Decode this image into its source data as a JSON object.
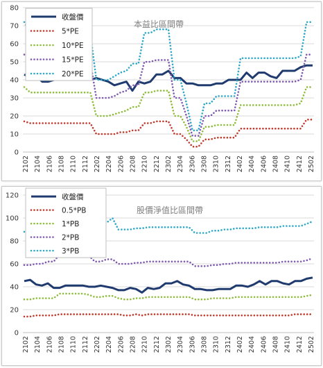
{
  "chart_data": [
    {
      "type": "line",
      "title": "本益比區間帶",
      "xlabel": "",
      "ylabel": "",
      "ylim": [
        0,
        80
      ],
      "yticks": [
        0,
        10,
        20,
        30,
        40,
        50,
        60,
        70,
        80
      ],
      "grid": true,
      "legend_position": "top-left",
      "x_tick_labels": [
        "2102",
        "2104",
        "2106",
        "2108",
        "2110",
        "2112",
        "2202",
        "2204",
        "2206",
        "2208",
        "2210",
        "2212",
        "2302",
        "2304",
        "2306",
        "2308",
        "2310",
        "2312",
        "2402",
        "2404",
        "2406",
        "2408",
        "2410",
        "2412",
        "2502"
      ],
      "series": [
        {
          "name": "收盤價",
          "color": "#1f3a6e",
          "style": "solid",
          "values": [
            43,
            41,
            42,
            39,
            39,
            40,
            41,
            40,
            40,
            41,
            41,
            40,
            41,
            40,
            39,
            37,
            38,
            39,
            34,
            39,
            38,
            39,
            43,
            43,
            45,
            41,
            41,
            38,
            38,
            37,
            37,
            37,
            38,
            38,
            40,
            40,
            40,
            44,
            41,
            44,
            44,
            42,
            41,
            45,
            45,
            45,
            47,
            48,
            48
          ]
        },
        {
          "name": "5*PE",
          "color": "#c0392b",
          "style": "dotted",
          "values": [
            17,
            16,
            16,
            16,
            16,
            16,
            16,
            16,
            16,
            16,
            16,
            16,
            10,
            10,
            10,
            10,
            11,
            11,
            12,
            12,
            16,
            16,
            17,
            17,
            17,
            10,
            10,
            7,
            3,
            3,
            7,
            7,
            8,
            8,
            8,
            8,
            13,
            13,
            13,
            13,
            13,
            13,
            13,
            13,
            13,
            13,
            13,
            18,
            18
          ]
        },
        {
          "name": "10*PE",
          "color": "#8fbc3c",
          "style": "dotted",
          "values": [
            36,
            33,
            33,
            33,
            33,
            33,
            33,
            33,
            33,
            33,
            33,
            33,
            20,
            20,
            20,
            21,
            22,
            23,
            25,
            25,
            33,
            33,
            34,
            34,
            34,
            20,
            20,
            14,
            6,
            6,
            14,
            14,
            15,
            15,
            15,
            15,
            26,
            26,
            26,
            26,
            26,
            26,
            26,
            26,
            26,
            26,
            27,
            36,
            36
          ]
        },
        {
          "name": "15*PE",
          "color": "#7e5ab0",
          "style": "dotted",
          "values": [
            54,
            50,
            50,
            50,
            50,
            50,
            50,
            50,
            50,
            50,
            50,
            50,
            30,
            30,
            30,
            31,
            33,
            34,
            37,
            37,
            50,
            50,
            51,
            51,
            51,
            30,
            30,
            20,
            9,
            9,
            20,
            20,
            23,
            23,
            23,
            23,
            39,
            39,
            39,
            39,
            39,
            39,
            39,
            39,
            39,
            39,
            40,
            54,
            54
          ]
        },
        {
          "name": "20*PE",
          "color": "#2ea8c8",
          "style": "dotted",
          "values": [
            72,
            66,
            66,
            66,
            66,
            66,
            66,
            66,
            66,
            66,
            66,
            66,
            40,
            40,
            40,
            42,
            44,
            45,
            49,
            49,
            66,
            66,
            68,
            68,
            68,
            40,
            40,
            27,
            12,
            12,
            27,
            27,
            31,
            31,
            31,
            31,
            52,
            52,
            52,
            52,
            52,
            52,
            52,
            52,
            52,
            52,
            53,
            72,
            72
          ]
        }
      ]
    },
    {
      "type": "line",
      "title": "股價淨值比區間帶",
      "xlabel": "",
      "ylabel": "",
      "ylim": [
        0,
        120
      ],
      "yticks": [
        0,
        20,
        40,
        60,
        80,
        100,
        120
      ],
      "grid": true,
      "legend_position": "top-left",
      "x_tick_labels": [
        "2102",
        "2104",
        "2106",
        "2108",
        "2110",
        "2112",
        "2202",
        "2204",
        "2206",
        "2208",
        "2210",
        "2212",
        "2302",
        "2304",
        "2306",
        "2308",
        "2310",
        "2312",
        "2402",
        "2404",
        "2406",
        "2408",
        "2410",
        "2412",
        "2502"
      ],
      "series": [
        {
          "name": "收盤價",
          "color": "#1f3a6e",
          "style": "solid",
          "values": [
            45,
            46,
            42,
            41,
            43,
            39,
            39,
            41,
            41,
            41,
            41,
            40,
            40,
            41,
            40,
            39,
            37,
            37,
            39,
            38,
            35,
            39,
            38,
            39,
            43,
            43,
            45,
            42,
            41,
            38,
            38,
            37,
            37,
            38,
            38,
            38,
            41,
            41,
            40,
            42,
            45,
            42,
            45,
            45,
            43,
            42,
            45,
            45,
            47,
            48
          ]
        },
        {
          "name": "0.5*PB",
          "color": "#c0392b",
          "style": "dotted",
          "values": [
            14,
            14,
            15,
            15,
            15,
            15,
            16,
            16,
            16,
            16,
            16,
            16,
            16,
            16,
            16,
            16,
            16,
            15,
            15,
            16,
            15,
            16,
            16,
            16,
            16,
            16,
            16,
            16,
            16,
            15,
            15,
            15,
            15,
            15,
            15,
            15,
            15,
            15,
            15,
            15,
            15,
            15,
            15,
            15,
            15,
            15,
            16,
            16,
            16,
            16
          ]
        },
        {
          "name": "1*PB",
          "color": "#8fbc3c",
          "style": "dotted",
          "values": [
            29,
            29,
            30,
            30,
            30,
            30,
            34,
            34,
            34,
            34,
            34,
            33,
            31,
            31,
            32,
            32,
            30,
            29,
            29,
            30,
            30,
            31,
            31,
            31,
            31,
            31,
            31,
            31,
            31,
            29,
            29,
            29,
            30,
            30,
            30,
            30,
            31,
            31,
            31,
            31,
            31,
            31,
            31,
            31,
            31,
            31,
            31,
            31,
            32,
            33
          ]
        },
        {
          "name": "2*PB",
          "color": "#7e5ab0",
          "style": "dotted",
          "values": [
            59,
            59,
            60,
            60,
            62,
            62,
            68,
            68,
            68,
            68,
            68,
            67,
            62,
            62,
            64,
            64,
            60,
            60,
            60,
            61,
            61,
            62,
            62,
            62,
            62,
            62,
            62,
            62,
            62,
            58,
            58,
            58,
            59,
            59,
            60,
            60,
            61,
            61,
            61,
            61,
            61,
            61,
            61,
            61,
            62,
            62,
            62,
            62,
            63,
            65
          ]
        },
        {
          "name": "3*PB",
          "color": "#2ea8c8",
          "style": "dotted",
          "values": [
            88,
            88,
            90,
            90,
            93,
            93,
            102,
            102,
            102,
            102,
            102,
            100,
            93,
            93,
            96,
            100,
            90,
            90,
            90,
            91,
            91,
            92,
            92,
            92,
            92,
            92,
            92,
            92,
            92,
            87,
            87,
            87,
            89,
            89,
            90,
            90,
            91,
            91,
            91,
            91,
            92,
            92,
            92,
            92,
            93,
            93,
            93,
            93,
            95,
            97
          ]
        }
      ]
    }
  ]
}
